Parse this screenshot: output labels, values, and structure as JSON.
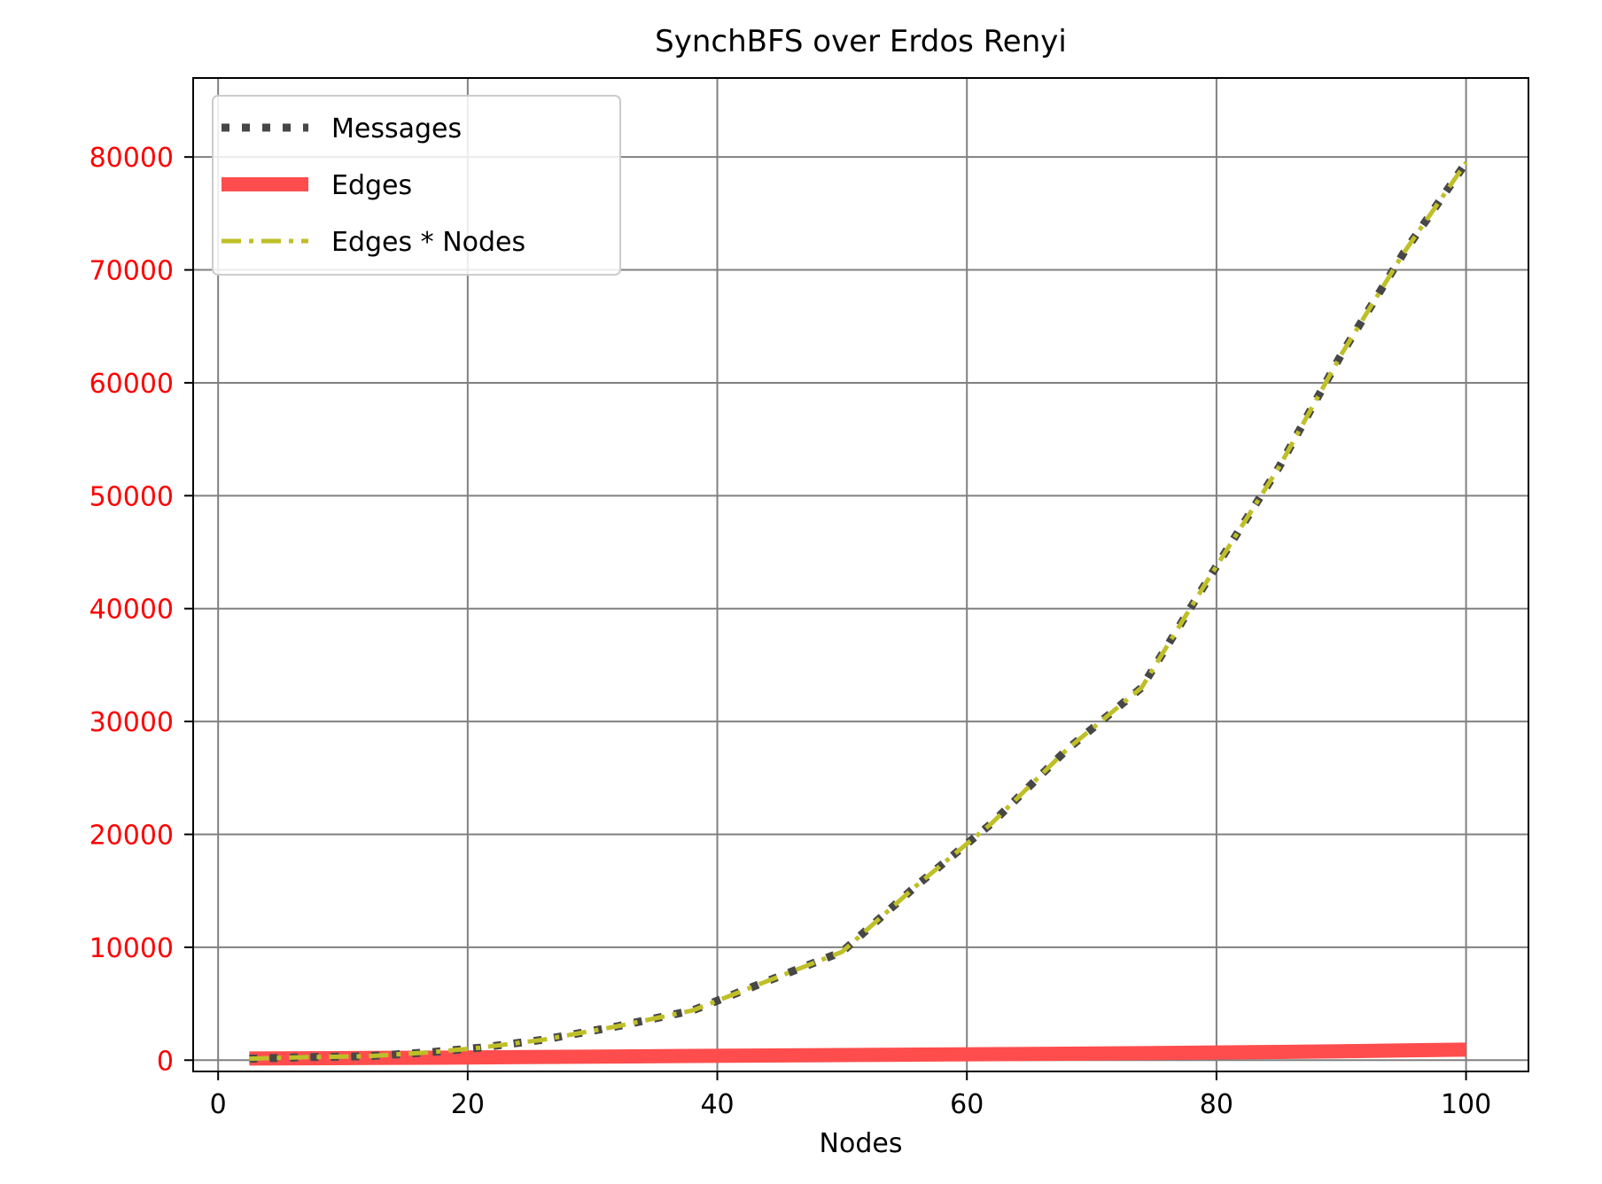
{
  "chart_data": {
    "type": "line",
    "title": "SynchBFS over Erdos Renyi",
    "xlabel": "Nodes",
    "ylabel": "",
    "xlim": [
      -2,
      105
    ],
    "ylim": [
      -1000,
      87000
    ],
    "xticks": [
      0,
      20,
      40,
      60,
      80,
      100
    ],
    "xtick_labels": [
      "0",
      "20",
      "40",
      "60",
      "80",
      "100"
    ],
    "yticks": [
      0,
      10000,
      20000,
      30000,
      40000,
      50000,
      60000,
      70000,
      80000
    ],
    "ytick_labels": [
      "0",
      "10000",
      "20000",
      "30000",
      "40000",
      "50000",
      "60000",
      "70000",
      "80000"
    ],
    "grid": true,
    "legend_position": "top-left",
    "colors": {
      "tick_label_y": "#ff0000",
      "tick_label_x": "#000000",
      "grid": "#808080",
      "axes": "#000000"
    },
    "series": [
      {
        "name": "Messages",
        "style": "dotted",
        "color": "#474747",
        "x": [
          2.5,
          7,
          12,
          17,
          21,
          26,
          32,
          38,
          44,
          50,
          56,
          62,
          68,
          74,
          79,
          85,
          90,
          95,
          100
        ],
        "y": [
          130,
          260,
          350,
          700,
          1100,
          1800,
          3000,
          4400,
          7000,
          9600,
          15500,
          21000,
          27500,
          33000,
          42000,
          52500,
          62500,
          71500,
          79500
        ]
      },
      {
        "name": "Edges",
        "style": "solid",
        "color": "#ff4d4d",
        "x": [
          2.5,
          7,
          12,
          17,
          21,
          26,
          32,
          38,
          44,
          50,
          56,
          62,
          68,
          74,
          79,
          85,
          90,
          95,
          100
        ],
        "y": [
          150,
          170,
          190,
          220,
          250,
          290,
          330,
          370,
          410,
          450,
          490,
          530,
          570,
          620,
          670,
          730,
          790,
          860,
          930
        ]
      },
      {
        "name": "Edges * Nodes",
        "style": "dashdot",
        "color": "#bfbf28",
        "x": [
          2.5,
          7,
          12,
          17,
          21,
          26,
          32,
          38,
          44,
          50,
          56,
          62,
          68,
          74,
          79,
          85,
          90,
          95,
          100
        ],
        "y": [
          130,
          260,
          350,
          700,
          1100,
          1800,
          3000,
          4400,
          7000,
          9600,
          15500,
          21000,
          27500,
          33000,
          42000,
          52500,
          62500,
          71500,
          79500
        ]
      }
    ]
  }
}
